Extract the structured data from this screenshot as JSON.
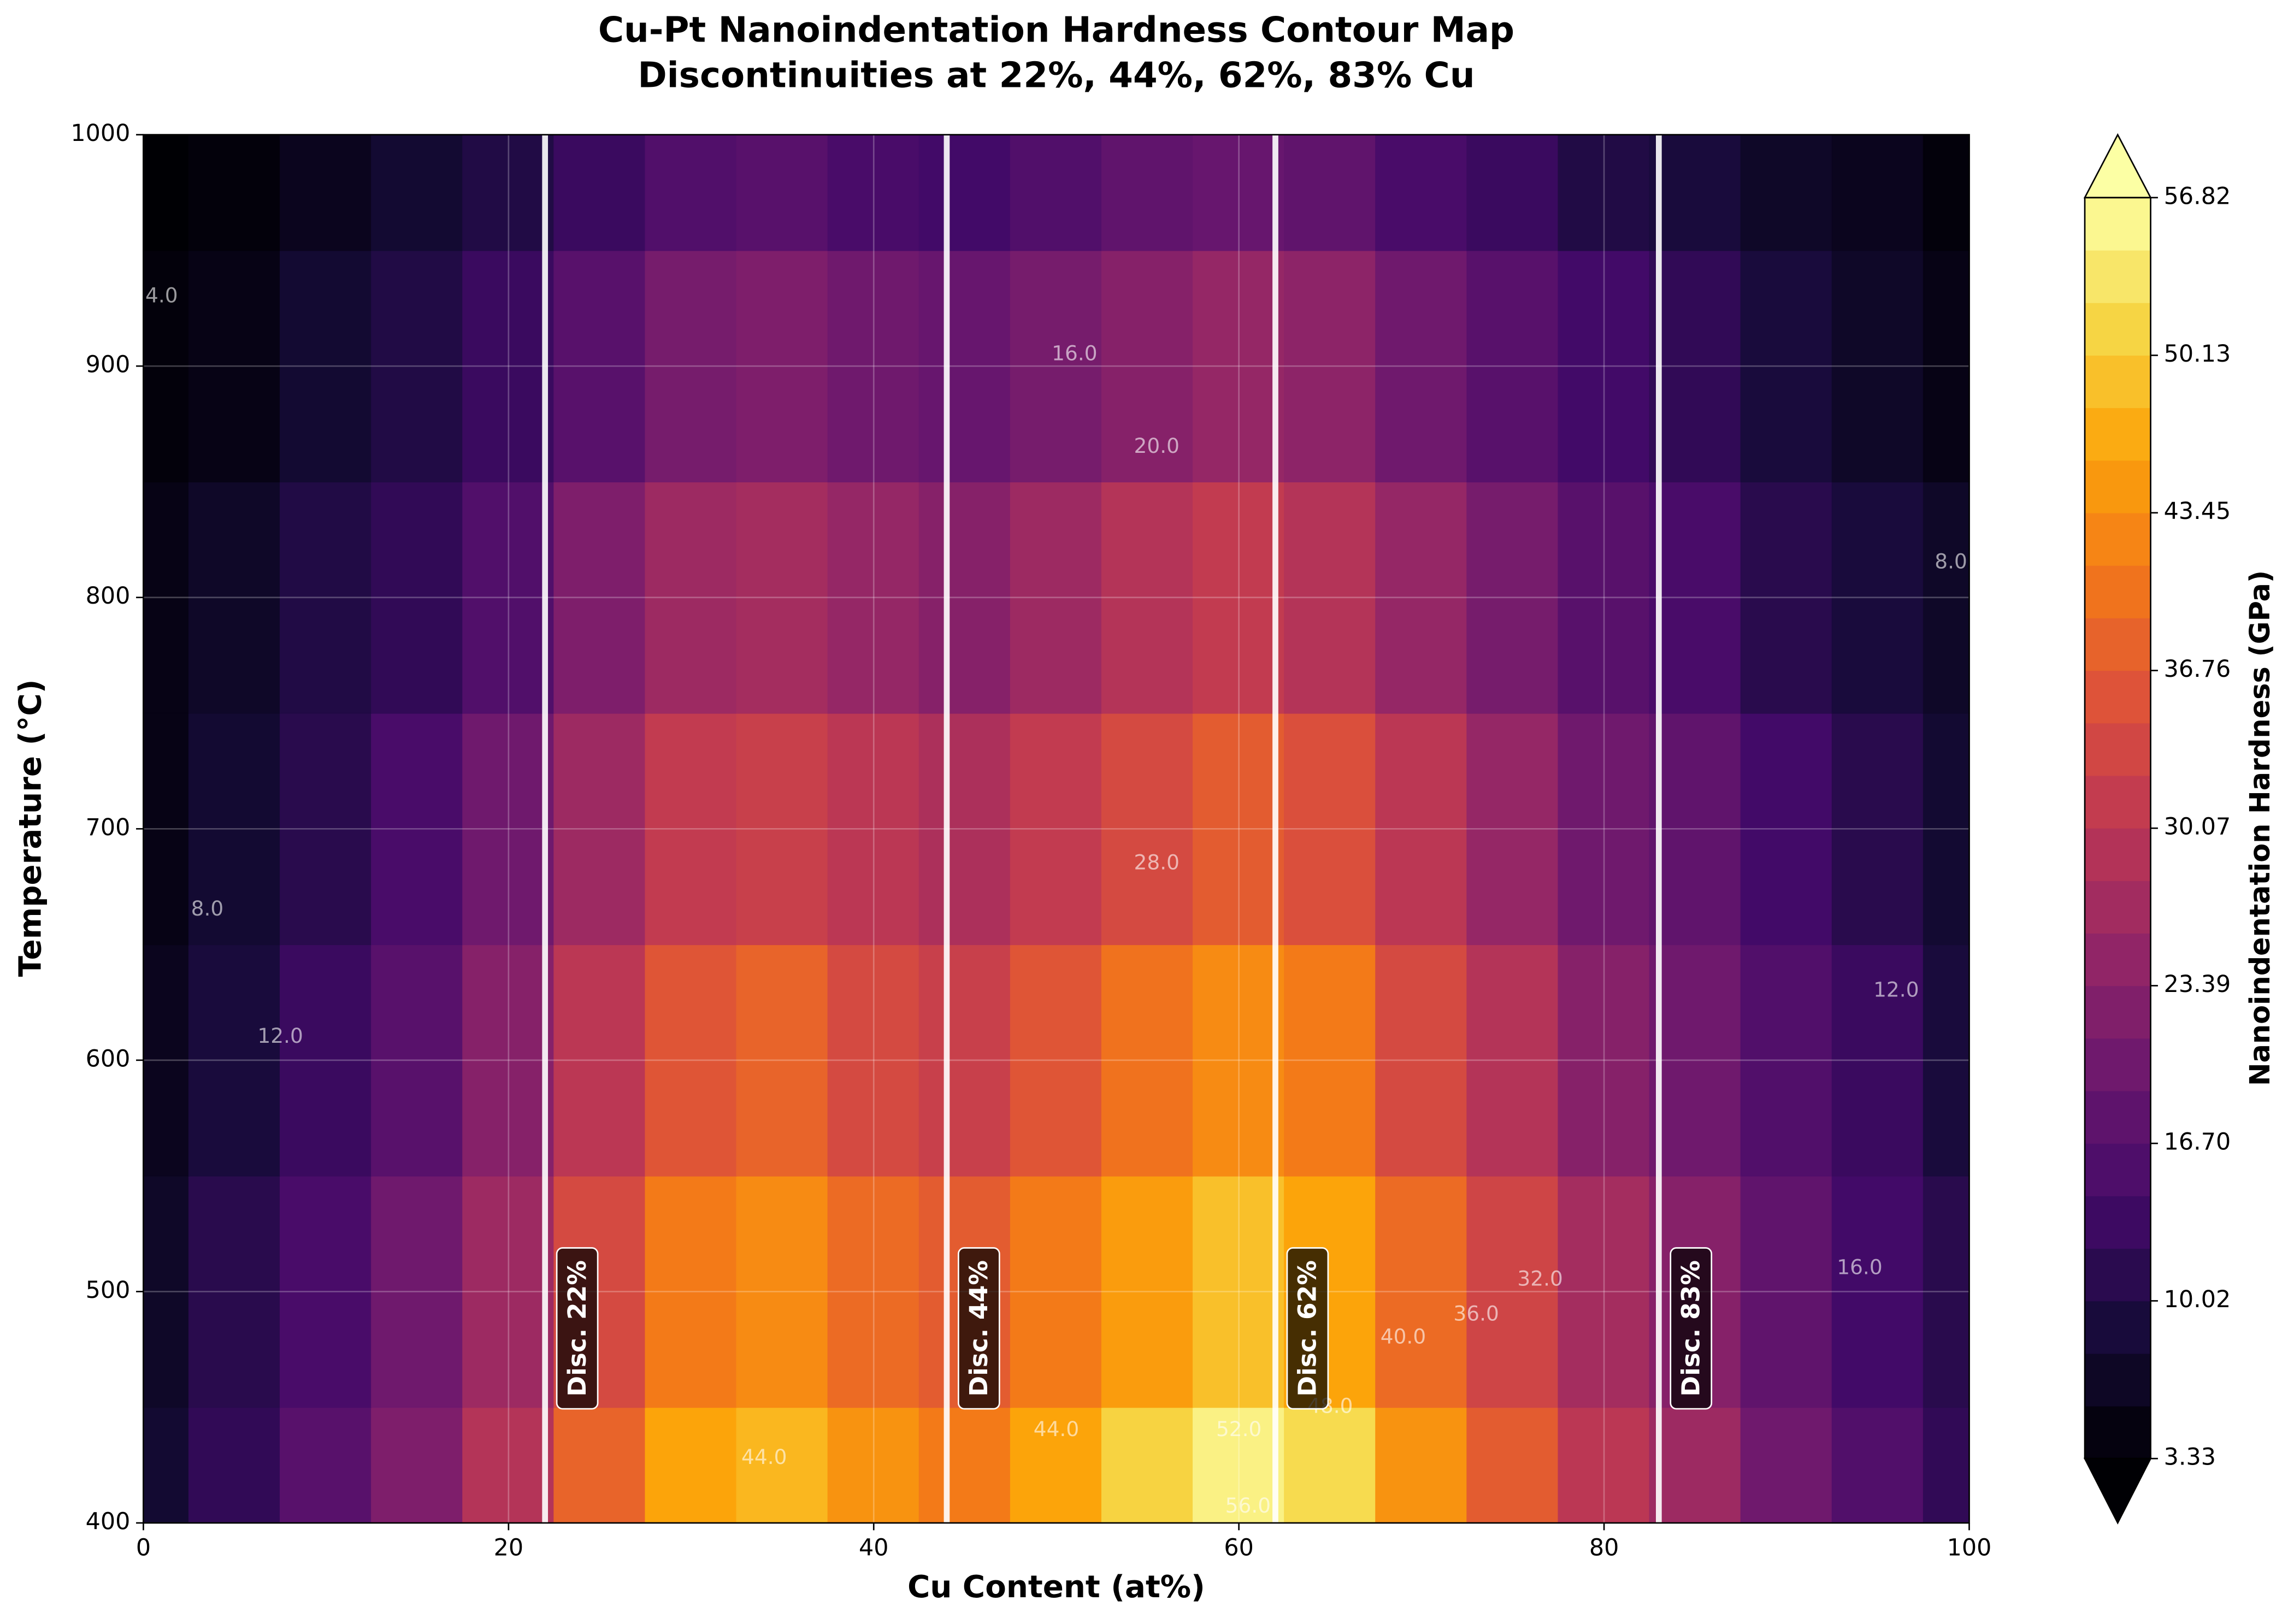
{
  "chart_data": {
    "type": "contour",
    "title": "Cu-Pt Nanoindentation Hardness Contour Map",
    "subtitle": "Discontinuities at 22%, 44%, 62%, 83% Cu",
    "xlabel": "Cu Content (at%)",
    "ylabel": "Temperature (°C)",
    "colorbar_label": "Nanoindentation Hardness (GPa)",
    "x": [
      0,
      5,
      10,
      15,
      20,
      25,
      30,
      35,
      40,
      45,
      50,
      55,
      60,
      65,
      70,
      75,
      80,
      85,
      90,
      95,
      100
    ],
    "y": [
      400,
      500,
      600,
      700,
      800,
      900,
      1000
    ],
    "z": [
      [
        8,
        12,
        17,
        22,
        29,
        38,
        46,
        48,
        44,
        41,
        46,
        51,
        55,
        52,
        44,
        37,
        30,
        26,
        20,
        16,
        12
      ],
      [
        7,
        11,
        15,
        20,
        26,
        34,
        41,
        43,
        39,
        37,
        41,
        45,
        49,
        46,
        39,
        33,
        27,
        23,
        18,
        14,
        11
      ],
      [
        6,
        9,
        13,
        17,
        23,
        30,
        36,
        38,
        34,
        32,
        36,
        40,
        43,
        41,
        34,
        29,
        23,
        20,
        16,
        13,
        9
      ],
      [
        5,
        8,
        11,
        15,
        20,
        26,
        31,
        32,
        30,
        28,
        31,
        34,
        37,
        35,
        30,
        25,
        20,
        18,
        14,
        11,
        8
      ],
      [
        5,
        7,
        10,
        12,
        16,
        22,
        26,
        27,
        25,
        23,
        26,
        29,
        31,
        29,
        25,
        21,
        17,
        15,
        11,
        9,
        7
      ],
      [
        4,
        5,
        8,
        10,
        13,
        17,
        21,
        22,
        20,
        19,
        21,
        23,
        25,
        24,
        20,
        17,
        14,
        12,
        9,
        7,
        5
      ],
      [
        3,
        4,
        6,
        8,
        10,
        13,
        16,
        17,
        15,
        14,
        16,
        18,
        19,
        18,
        15,
        13,
        10,
        9,
        7,
        6,
        4
      ]
    ],
    "xlim": [
      0,
      100
    ],
    "ylim": [
      400,
      1000
    ],
    "xticks": [
      0,
      20,
      40,
      60,
      80,
      100
    ],
    "yticks": [
      400,
      500,
      600,
      700,
      800,
      900,
      1000
    ],
    "grid": true,
    "colormap": "inferno",
    "clim": [
      3.33,
      56.82
    ],
    "cticks": [
      3.33,
      10.02,
      {
        "value": 16.7,
        "label": "16.70"
      },
      23.39,
      30.07,
      36.76,
      43.45,
      50.13,
      56.82
    ],
    "discontinuities": [
      {
        "x": 22,
        "label": "Disc. 22%"
      },
      {
        "x": 44,
        "label": "Disc. 44%"
      },
      {
        "x": 62,
        "label": "Disc. 62%"
      },
      {
        "x": 83,
        "label": "Disc. 83%"
      }
    ],
    "contour_labels": [
      {
        "text": "4.0",
        "x": 1,
        "y": 930
      },
      {
        "text": "8.0",
        "x": 3.5,
        "y": 665
      },
      {
        "text": "12.0",
        "x": 7.5,
        "y": 610
      },
      {
        "text": "16.0",
        "x": 51,
        "y": 905
      },
      {
        "text": "20.0",
        "x": 55.5,
        "y": 865
      },
      {
        "text": "28.0",
        "x": 55.5,
        "y": 685
      },
      {
        "text": "44.0",
        "x": 34,
        "y": 428
      },
      {
        "text": "44.0",
        "x": 50,
        "y": 440
      },
      {
        "text": "52.0",
        "x": 60,
        "y": 440
      },
      {
        "text": "56.0",
        "x": 60.5,
        "y": 407
      },
      {
        "text": "48.0",
        "x": 65,
        "y": 450
      },
      {
        "text": "40.0",
        "x": 69,
        "y": 480
      },
      {
        "text": "36.0",
        "x": 73,
        "y": 490
      },
      {
        "text": "32.0",
        "x": 76.5,
        "y": 505
      },
      {
        "text": "16.0",
        "x": 94,
        "y": 510
      },
      {
        "text": "12.0",
        "x": 96,
        "y": 630
      },
      {
        "text": "8.0",
        "x": 99,
        "y": 815
      }
    ]
  }
}
